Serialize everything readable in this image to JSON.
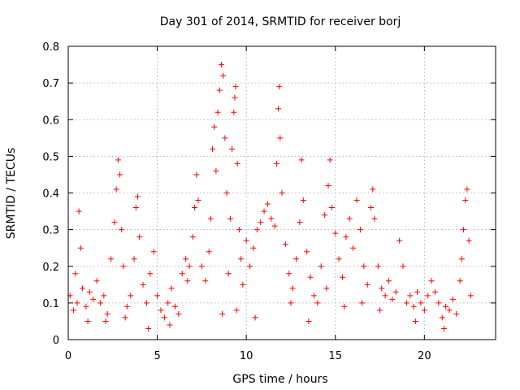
{
  "chart_data": {
    "type": "scatter",
    "title": "Day 301 of 2014, SRMTID for receiver borj",
    "xlabel": "GPS time / hours",
    "ylabel": "SRMTID / TECUs",
    "xlim": [
      0,
      24
    ],
    "ylim": [
      0,
      0.8
    ],
    "xticks": [
      "0",
      "5",
      "10",
      "15",
      "20"
    ],
    "yticks": [
      "0",
      "0.1",
      "0.2",
      "0.3",
      "0.4",
      "0.5",
      "0.6",
      "0.7",
      "0.8"
    ],
    "grid": true,
    "marker": "plus",
    "color": "#ff0000",
    "series": [
      {
        "name": "SRMTID",
        "points": [
          [
            0.1,
            0.12
          ],
          [
            0.3,
            0.08
          ],
          [
            0.4,
            0.18
          ],
          [
            0.5,
            0.1
          ],
          [
            0.6,
            0.35
          ],
          [
            0.7,
            0.25
          ],
          [
            0.8,
            0.14
          ],
          [
            1.0,
            0.09
          ],
          [
            1.2,
            0.13
          ],
          [
            1.4,
            0.11
          ],
          [
            1.6,
            0.16
          ],
          [
            1.8,
            0.1
          ],
          [
            2.0,
            0.12
          ],
          [
            2.2,
            0.07
          ],
          [
            2.4,
            0.22
          ],
          [
            2.6,
            0.32
          ],
          [
            2.7,
            0.41
          ],
          [
            2.8,
            0.49
          ],
          [
            2.9,
            0.45
          ],
          [
            3.0,
            0.3
          ],
          [
            3.1,
            0.2
          ],
          [
            3.3,
            0.09
          ],
          [
            3.5,
            0.12
          ],
          [
            3.7,
            0.22
          ],
          [
            3.8,
            0.36
          ],
          [
            3.9,
            0.39
          ],
          [
            4.0,
            0.28
          ],
          [
            4.2,
            0.15
          ],
          [
            4.4,
            0.1
          ],
          [
            4.6,
            0.18
          ],
          [
            4.8,
            0.24
          ],
          [
            5.0,
            0.12
          ],
          [
            5.2,
            0.08
          ],
          [
            5.4,
            0.06
          ],
          [
            5.6,
            0.1
          ],
          [
            5.8,
            0.14
          ],
          [
            6.0,
            0.09
          ],
          [
            6.2,
            0.07
          ],
          [
            6.4,
            0.18
          ],
          [
            6.6,
            0.22
          ],
          [
            6.8,
            0.2
          ],
          [
            7.0,
            0.28
          ],
          [
            7.1,
            0.36
          ],
          [
            7.2,
            0.45
          ],
          [
            7.3,
            0.38
          ],
          [
            7.5,
            0.2
          ],
          [
            7.7,
            0.16
          ],
          [
            7.9,
            0.24
          ],
          [
            8.0,
            0.33
          ],
          [
            8.1,
            0.52
          ],
          [
            8.2,
            0.58
          ],
          [
            8.3,
            0.46
          ],
          [
            8.4,
            0.62
          ],
          [
            8.5,
            0.68
          ],
          [
            8.6,
            0.75
          ],
          [
            8.7,
            0.72
          ],
          [
            8.8,
            0.55
          ],
          [
            8.9,
            0.4
          ],
          [
            9.0,
            0.18
          ],
          [
            9.1,
            0.33
          ],
          [
            9.2,
            0.52
          ],
          [
            9.3,
            0.62
          ],
          [
            9.35,
            0.66
          ],
          [
            9.4,
            0.69
          ],
          [
            9.5,
            0.48
          ],
          [
            9.6,
            0.3
          ],
          [
            9.7,
            0.22
          ],
          [
            9.8,
            0.15
          ],
          [
            10.0,
            0.27
          ],
          [
            10.2,
            0.2
          ],
          [
            10.4,
            0.25
          ],
          [
            10.6,
            0.3
          ],
          [
            10.8,
            0.32
          ],
          [
            11.0,
            0.35
          ],
          [
            11.2,
            0.37
          ],
          [
            11.4,
            0.33
          ],
          [
            11.6,
            0.31
          ],
          [
            11.7,
            0.48
          ],
          [
            11.8,
            0.63
          ],
          [
            11.85,
            0.69
          ],
          [
            11.9,
            0.55
          ],
          [
            12.0,
            0.4
          ],
          [
            12.2,
            0.26
          ],
          [
            12.4,
            0.18
          ],
          [
            12.6,
            0.14
          ],
          [
            12.8,
            0.22
          ],
          [
            13.0,
            0.32
          ],
          [
            13.1,
            0.49
          ],
          [
            13.2,
            0.38
          ],
          [
            13.4,
            0.24
          ],
          [
            13.6,
            0.17
          ],
          [
            13.8,
            0.12
          ],
          [
            14.0,
            0.1
          ],
          [
            14.2,
            0.2
          ],
          [
            14.4,
            0.34
          ],
          [
            14.6,
            0.42
          ],
          [
            14.7,
            0.49
          ],
          [
            14.8,
            0.36
          ],
          [
            15.0,
            0.29
          ],
          [
            15.2,
            0.22
          ],
          [
            15.4,
            0.17
          ],
          [
            15.6,
            0.28
          ],
          [
            15.8,
            0.33
          ],
          [
            16.0,
            0.25
          ],
          [
            16.2,
            0.38
          ],
          [
            16.4,
            0.3
          ],
          [
            16.6,
            0.2
          ],
          [
            16.8,
            0.15
          ],
          [
            17.0,
            0.36
          ],
          [
            17.1,
            0.41
          ],
          [
            17.2,
            0.33
          ],
          [
            17.4,
            0.2
          ],
          [
            17.6,
            0.14
          ],
          [
            17.8,
            0.12
          ],
          [
            18.0,
            0.16
          ],
          [
            18.2,
            0.11
          ],
          [
            18.4,
            0.13
          ],
          [
            18.6,
            0.27
          ],
          [
            18.8,
            0.2
          ],
          [
            19.0,
            0.1
          ],
          [
            19.2,
            0.12
          ],
          [
            19.4,
            0.09
          ],
          [
            19.6,
            0.13
          ],
          [
            19.8,
            0.1
          ],
          [
            20.0,
            0.08
          ],
          [
            20.2,
            0.12
          ],
          [
            20.4,
            0.16
          ],
          [
            20.6,
            0.13
          ],
          [
            20.8,
            0.1
          ],
          [
            21.0,
            0.06
          ],
          [
            21.2,
            0.09
          ],
          [
            21.4,
            0.08
          ],
          [
            21.6,
            0.11
          ],
          [
            21.8,
            0.07
          ],
          [
            22.0,
            0.16
          ],
          [
            22.1,
            0.22
          ],
          [
            22.2,
            0.3
          ],
          [
            22.3,
            0.38
          ],
          [
            22.4,
            0.41
          ],
          [
            22.5,
            0.27
          ],
          [
            22.6,
            0.12
          ],
          [
            1.1,
            0.05
          ],
          [
            4.5,
            0.03
          ],
          [
            5.7,
            0.04
          ],
          [
            19.5,
            0.05
          ],
          [
            21.1,
            0.03
          ],
          [
            12.5,
            0.1
          ],
          [
            15.5,
            0.09
          ],
          [
            8.65,
            0.07
          ],
          [
            9.45,
            0.08
          ],
          [
            10.5,
            0.06
          ],
          [
            13.5,
            0.05
          ],
          [
            16.5,
            0.1
          ],
          [
            17.5,
            0.08
          ],
          [
            14.5,
            0.14
          ],
          [
            6.7,
            0.16
          ],
          [
            3.2,
            0.06
          ],
          [
            2.1,
            0.05
          ]
        ]
      }
    ]
  }
}
